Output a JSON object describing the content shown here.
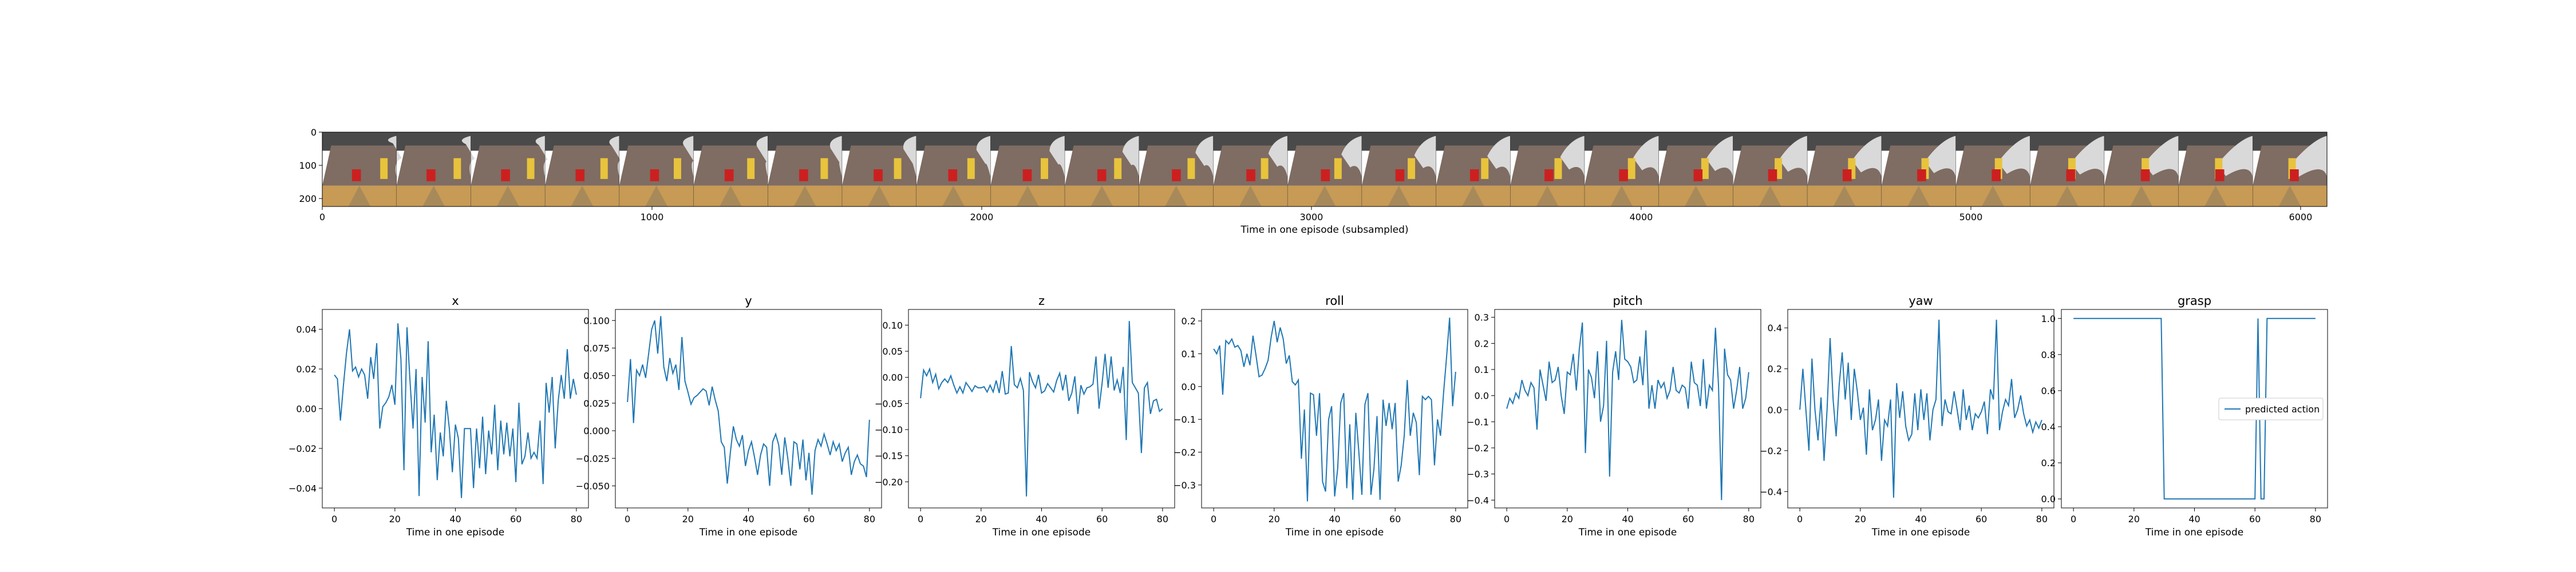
{
  "strip": {
    "xlabel": "Time in one episode (subsampled)",
    "x_ticks": [
      "0",
      "1000",
      "2000",
      "3000",
      "4000",
      "5000",
      "6000"
    ],
    "y_ticks": [
      "0",
      "100",
      "200"
    ],
    "xlim": [
      0,
      6080
    ],
    "ylim": [
      0,
      224
    ],
    "frame_count": 27,
    "colors": {
      "top": "#4a4a4a",
      "table": "#7f6c62",
      "table_edge": "#a88a5a",
      "floor": "#c79a55",
      "arm": "#d9d9d9",
      "object_yellow": "#e8c33c",
      "object_red": "#cc2020"
    }
  },
  "chart_data": [
    {
      "type": "line",
      "title": "x",
      "xlabel": "Time in one episode",
      "xlim": [
        -4,
        84
      ],
      "ylim": [
        -0.05,
        0.05
      ],
      "x_ticks": [
        0,
        20,
        40,
        60,
        80
      ],
      "y_ticks": [
        {
          "v": -0.04,
          "t": "−0.04"
        },
        {
          "v": -0.02,
          "t": "−0.02"
        },
        {
          "v": 0.0,
          "t": "0.00"
        },
        {
          "v": 0.02,
          "t": "0.02"
        },
        {
          "v": 0.04,
          "t": "0.04"
        }
      ],
      "series": [
        {
          "color": "#1f77b4",
          "values": [
            0.017,
            0.015,
            -0.006,
            0.012,
            0.028,
            0.04,
            0.019,
            0.021,
            0.016,
            0.02,
            0.017,
            0.005,
            0.026,
            0.015,
            0.033,
            -0.01,
            0.001,
            0.003,
            0.006,
            0.012,
            0.002,
            0.043,
            0.025,
            -0.031,
            0.041,
            0.014,
            -0.01,
            0.02,
            -0.044,
            0.016,
            -0.007,
            0.034,
            -0.022,
            -0.003,
            -0.036,
            -0.012,
            -0.024,
            0.004,
            -0.01,
            -0.032,
            -0.008,
            -0.015,
            -0.045,
            -0.01,
            -0.01,
            -0.01,
            -0.04,
            -0.01,
            -0.03,
            -0.004,
            -0.033,
            -0.011,
            -0.023,
            0.002,
            -0.031,
            -0.006,
            -0.023,
            -0.007,
            -0.024,
            -0.01,
            -0.037,
            0.003,
            -0.028,
            -0.024,
            -0.012,
            -0.025,
            -0.022,
            -0.025,
            -0.006,
            -0.038,
            0.013,
            -0.002,
            0.016,
            -0.02,
            0.004,
            0.017,
            0.005,
            0.03,
            0.005,
            0.015,
            0.007
          ]
        }
      ]
    },
    {
      "type": "line",
      "title": "y",
      "xlabel": "Time in one episode",
      "xlim": [
        -4,
        84
      ],
      "ylim": [
        -0.07,
        0.11
      ],
      "x_ticks": [
        0,
        20,
        40,
        60,
        80
      ],
      "y_ticks": [
        {
          "v": -0.05,
          "t": "−0.050"
        },
        {
          "v": -0.025,
          "t": "−0.025"
        },
        {
          "v": 0.0,
          "t": "0.000"
        },
        {
          "v": 0.025,
          "t": "0.025"
        },
        {
          "v": 0.05,
          "t": "0.050"
        },
        {
          "v": 0.075,
          "t": "0.075"
        },
        {
          "v": 0.1,
          "t": "0.100"
        }
      ],
      "series": [
        {
          "color": "#1f77b4",
          "values": [
            0.026,
            0.065,
            0.007,
            0.055,
            0.05,
            0.06,
            0.048,
            0.07,
            0.092,
            0.1,
            0.07,
            0.104,
            0.058,
            0.045,
            0.066,
            0.052,
            0.06,
            0.037,
            0.085,
            0.045,
            0.035,
            0.024,
            0.03,
            0.032,
            0.035,
            0.038,
            0.036,
            0.023,
            0.04,
            0.028,
            0.018,
            -0.01,
            -0.015,
            -0.048,
            -0.02,
            0.004,
            -0.008,
            -0.014,
            -0.004,
            -0.032,
            -0.018,
            -0.01,
            -0.024,
            -0.04,
            -0.022,
            -0.012,
            -0.015,
            -0.05,
            -0.01,
            -0.003,
            -0.013,
            -0.04,
            -0.006,
            -0.025,
            -0.05,
            -0.01,
            -0.012,
            -0.035,
            -0.008,
            -0.045,
            -0.02,
            -0.058,
            -0.018,
            -0.008,
            -0.014,
            -0.003,
            -0.012,
            -0.022,
            -0.01,
            -0.018,
            -0.012,
            -0.028,
            -0.02,
            -0.015,
            -0.04,
            -0.028,
            -0.022,
            -0.03,
            -0.032,
            -0.042,
            0.01
          ]
        }
      ]
    },
    {
      "type": "line",
      "title": "z",
      "xlabel": "Time in one episode",
      "xlim": [
        -4,
        84
      ],
      "ylim": [
        -0.25,
        0.13
      ],
      "x_ticks": [
        0,
        20,
        40,
        60,
        80
      ],
      "y_ticks": [
        {
          "v": -0.2,
          "t": "−0.20"
        },
        {
          "v": -0.15,
          "t": "−0.15"
        },
        {
          "v": -0.1,
          "t": "−0.10"
        },
        {
          "v": -0.05,
          "t": "−0.05"
        },
        {
          "v": 0.0,
          "t": "0.00"
        },
        {
          "v": 0.05,
          "t": "0.05"
        },
        {
          "v": 0.1,
          "t": "0.10"
        }
      ],
      "series": [
        {
          "color": "#1f77b4",
          "values": [
            -0.04,
            0.014,
            0.003,
            0.016,
            -0.01,
            0.006,
            -0.022,
            -0.01,
            -0.003,
            -0.01,
            0.003,
            -0.015,
            -0.03,
            -0.018,
            -0.03,
            -0.01,
            -0.018,
            -0.027,
            -0.016,
            -0.02,
            -0.02,
            -0.018,
            -0.028,
            -0.015,
            -0.028,
            -0.006,
            -0.03,
            0.012,
            -0.032,
            -0.03,
            0.06,
            -0.014,
            -0.02,
            -0.002,
            -0.025,
            -0.228,
            0.01,
            -0.008,
            -0.02,
            0.005,
            -0.03,
            -0.026,
            -0.012,
            -0.02,
            -0.028,
            -0.006,
            0.008,
            -0.025,
            0.005,
            -0.045,
            -0.03,
            0.002,
            -0.07,
            -0.015,
            -0.032,
            -0.02,
            -0.018,
            -0.013,
            0.04,
            -0.06,
            -0.012,
            0.045,
            -0.02,
            0.04,
            -0.025,
            -0.005,
            -0.03,
            0.02,
            -0.12,
            0.108,
            -0.01,
            -0.02,
            -0.03,
            -0.145,
            -0.02,
            -0.01,
            -0.07,
            -0.045,
            -0.042,
            -0.065,
            -0.06
          ]
        }
      ]
    },
    {
      "type": "line",
      "title": "roll",
      "xlabel": "Time in one episode",
      "xlim": [
        -4,
        84
      ],
      "ylim": [
        -0.37,
        0.235
      ],
      "x_ticks": [
        0,
        20,
        40,
        60,
        80
      ],
      "y_ticks": [
        {
          "v": -0.3,
          "t": "−0.3"
        },
        {
          "v": -0.2,
          "t": "−0.2"
        },
        {
          "v": -0.1,
          "t": "−0.1"
        },
        {
          "v": 0.0,
          "t": "0.0"
        },
        {
          "v": 0.1,
          "t": "0.1"
        },
        {
          "v": 0.2,
          "t": "0.2"
        }
      ],
      "series": [
        {
          "color": "#1f77b4",
          "values": [
            0.115,
            0.1,
            0.125,
            -0.025,
            0.14,
            0.13,
            0.145,
            0.12,
            0.125,
            0.11,
            0.06,
            0.1,
            0.065,
            0.155,
            0.095,
            0.03,
            0.035,
            0.055,
            0.08,
            0.15,
            0.2,
            0.135,
            0.18,
            0.145,
            0.07,
            0.095,
            0.015,
            0.005,
            0.02,
            -0.22,
            -0.07,
            -0.35,
            -0.02,
            -0.025,
            -0.15,
            -0.02,
            -0.29,
            -0.32,
            -0.1,
            -0.06,
            -0.335,
            -0.25,
            -0.05,
            -0.02,
            -0.31,
            -0.115,
            -0.345,
            -0.08,
            -0.2,
            -0.33,
            -0.055,
            -0.02,
            -0.33,
            -0.25,
            -0.09,
            -0.345,
            -0.04,
            -0.12,
            -0.05,
            -0.13,
            -0.05,
            -0.29,
            -0.24,
            -0.15,
            0.02,
            -0.15,
            -0.08,
            -0.11,
            -0.27,
            -0.03,
            -0.04,
            -0.03,
            -0.04,
            -0.24,
            -0.1,
            -0.15,
            -0.02,
            0.09,
            0.21,
            -0.06,
            0.045
          ]
        }
      ]
    },
    {
      "type": "line",
      "title": "pitch",
      "xlabel": "Time in one episode",
      "xlim": [
        -4,
        84
      ],
      "ylim": [
        -0.43,
        0.33
      ],
      "x_ticks": [
        0,
        20,
        40,
        60,
        80
      ],
      "y_ticks": [
        {
          "v": -0.4,
          "t": "−0.4"
        },
        {
          "v": -0.3,
          "t": "−0.3"
        },
        {
          "v": -0.2,
          "t": "−0.2"
        },
        {
          "v": -0.1,
          "t": "−0.1"
        },
        {
          "v": 0.0,
          "t": "0.0"
        },
        {
          "v": 0.1,
          "t": "0.1"
        },
        {
          "v": 0.2,
          "t": "0.2"
        },
        {
          "v": 0.3,
          "t": "0.3"
        }
      ],
      "series": [
        {
          "color": "#1f77b4",
          "values": [
            -0.05,
            -0.01,
            -0.03,
            0.01,
            -0.01,
            0.06,
            0.02,
            0.0,
            0.05,
            0.03,
            -0.13,
            0.1,
            0.04,
            -0.02,
            0.13,
            0.05,
            0.06,
            0.11,
            0.0,
            -0.07,
            0.09,
            0.08,
            0.16,
            0.02,
            0.18,
            0.28,
            -0.22,
            0.1,
            0.07,
            -0.01,
            0.17,
            -0.1,
            -0.04,
            0.21,
            -0.31,
            0.09,
            0.17,
            0.06,
            0.29,
            0.14,
            0.13,
            0.11,
            0.05,
            0.06,
            0.15,
            0.04,
            0.25,
            -0.05,
            0.04,
            -0.05,
            0.06,
            0.03,
            0.05,
            -0.01,
            0.02,
            0.11,
            0.02,
            0.01,
            0.04,
            0.03,
            -0.05,
            0.13,
            0.05,
            0.04,
            -0.04,
            0.14,
            -0.05,
            0.04,
            0.02,
            0.26,
            0.04,
            -0.4,
            0.18,
            0.08,
            0.06,
            -0.05,
            0.02,
            0.11,
            -0.05,
            -0.01,
            0.09
          ]
        }
      ]
    },
    {
      "type": "line",
      "title": "yaw",
      "xlabel": "Time in one episode",
      "xlim": [
        -4,
        84
      ],
      "ylim": [
        -0.48,
        0.49
      ],
      "x_ticks": [
        0,
        20,
        40,
        60,
        80
      ],
      "y_ticks": [
        {
          "v": -0.4,
          "t": "−0.4"
        },
        {
          "v": -0.2,
          "t": "−0.2"
        },
        {
          "v": 0.0,
          "t": "0.0"
        },
        {
          "v": 0.2,
          "t": "0.2"
        },
        {
          "v": 0.4,
          "t": "0.4"
        }
      ],
      "series": [
        {
          "color": "#1f77b4",
          "values": [
            0.0,
            0.2,
            0.0,
            -0.2,
            0.25,
            0.0,
            -0.15,
            0.06,
            -0.25,
            0.0,
            0.35,
            0.05,
            -0.13,
            0.12,
            0.28,
            0.05,
            0.23,
            -0.05,
            0.2,
            0.09,
            -0.05,
            0.01,
            -0.22,
            0.1,
            -0.1,
            -0.05,
            0.05,
            -0.25,
            -0.05,
            -0.08,
            0.05,
            -0.43,
            0.13,
            -0.04,
            0.09,
            -0.08,
            -0.15,
            -0.12,
            0.08,
            -0.1,
            0.1,
            -0.05,
            0.08,
            -0.15,
            0.0,
            0.05,
            0.44,
            -0.08,
            0.05,
            -0.01,
            -0.02,
            0.09,
            0.0,
            -0.1,
            0.1,
            -0.05,
            0.02,
            -0.1,
            -0.02,
            -0.04,
            -0.01,
            0.04,
            -0.12,
            0.1,
            0.05,
            0.44,
            -0.1,
            -0.01,
            0.05,
            0.02,
            0.15,
            -0.04,
            0.0,
            0.07,
            -0.02,
            -0.08,
            -0.05,
            -0.11,
            -0.06,
            -0.09,
            -0.05
          ]
        }
      ]
    },
    {
      "type": "line",
      "title": "grasp",
      "xlabel": "Time in one episode",
      "xlim": [
        -4,
        84
      ],
      "ylim": [
        -0.05,
        1.05
      ],
      "x_ticks": [
        0,
        20,
        40,
        60,
        80
      ],
      "y_ticks": [
        {
          "v": 0.0,
          "t": "0.0"
        },
        {
          "v": 0.2,
          "t": "0.2"
        },
        {
          "v": 0.4,
          "t": "0.4"
        },
        {
          "v": 0.6,
          "t": "0.6"
        },
        {
          "v": 0.8,
          "t": "0.8"
        },
        {
          "v": 1.0,
          "t": "1.0"
        }
      ],
      "legend": {
        "entry": "predicted action",
        "placement": "center-right"
      },
      "series": [
        {
          "color": "#1f77b4",
          "values": [
            1,
            1,
            1,
            1,
            1,
            1,
            1,
            1,
            1,
            1,
            1,
            1,
            1,
            1,
            1,
            1,
            1,
            1,
            1,
            1,
            1,
            1,
            1,
            1,
            1,
            1,
            1,
            1,
            1,
            1,
            0,
            0,
            0,
            0,
            0,
            0,
            0,
            0,
            0,
            0,
            0,
            0,
            0,
            0,
            0,
            0,
            0,
            0,
            0,
            0,
            0,
            0,
            0,
            0,
            0,
            0,
            0,
            0,
            0,
            0,
            0,
            1,
            0,
            0,
            1,
            1,
            1,
            1,
            1,
            1,
            1,
            1,
            1,
            1,
            1,
            1,
            1,
            1,
            1,
            1,
            1
          ]
        }
      ]
    }
  ]
}
